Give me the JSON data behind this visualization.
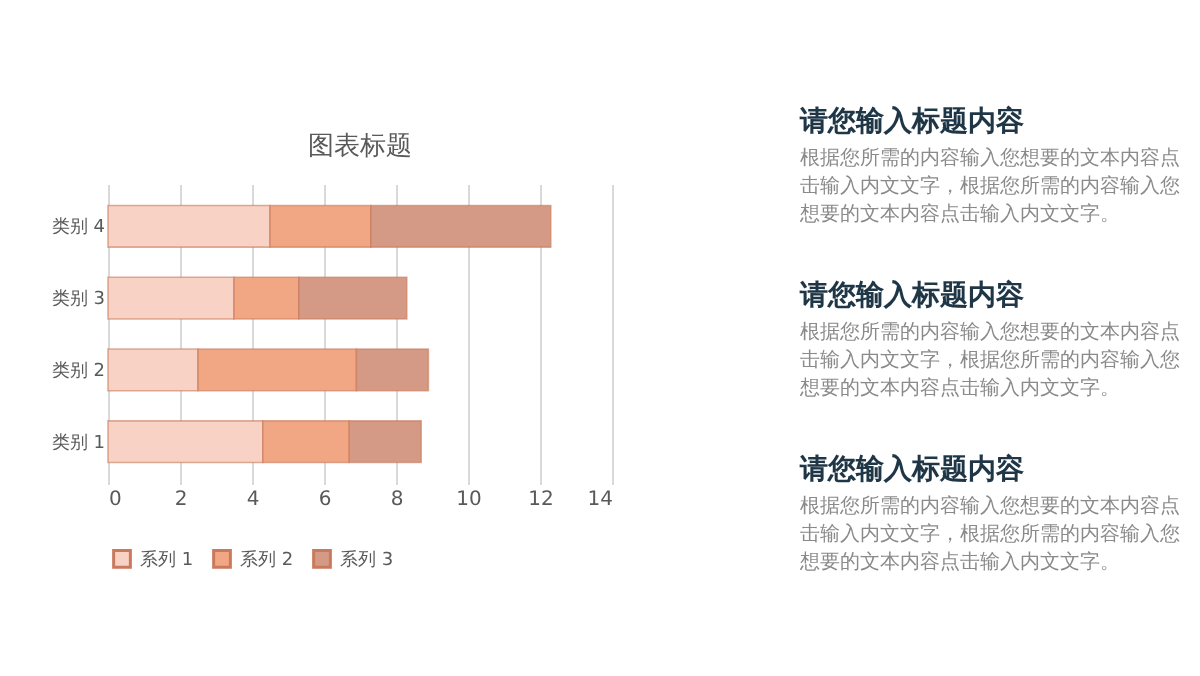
{
  "chart_data": [
    {
      "type": "bar",
      "title": "图表标题",
      "orientation": "horizontal",
      "stacked": true,
      "categories": [
        "类别 4",
        "类别 3",
        "类别 2",
        "类别 1"
      ],
      "series": [
        {
          "name": "系列 1",
          "color": "#f8d3c5",
          "values": [
            4.5,
            3.5,
            2.5,
            4.3
          ]
        },
        {
          "name": "系列 2",
          "color": "#f2a784",
          "values": [
            2.8,
            1.8,
            4.4,
            2.4
          ]
        },
        {
          "name": "系列 3",
          "color": "#d59a86",
          "values": [
            5,
            3,
            2,
            2
          ]
        }
      ],
      "xlim": [
        0,
        14
      ],
      "xticks": [
        0,
        2,
        4,
        6,
        8,
        10,
        12,
        14
      ],
      "grid": "x",
      "legend": "bottom"
    },
    {
      "type": "other",
      "annotations": [
        "请您输入标题内容",
        "根据您所需的内容输入您想要的文本内容点击输入内文文字，根据您所需的内容输入您想要的文本内容点击输入内文文字。",
        "请您输入标题内容",
        "根据您所需的内容输入您想要的文本内容点击输入内文文字，根据您所需的内容输入您想要的文本内容点击输入内文文字。",
        "请您输入标题内容",
        "根据您所需的内容输入您想要的文本内容点击输入内文文字，根据您所需的内容输入您想要的文本内容点击输入内文文字。"
      ]
    }
  ]
}
